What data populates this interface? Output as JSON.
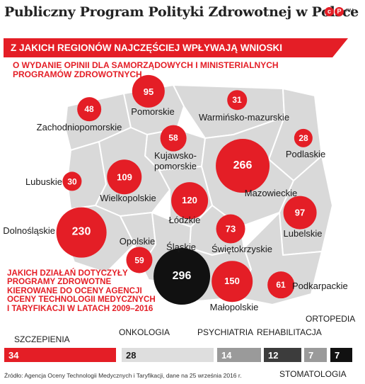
{
  "title": "Publiczny Program Polityki Zdrowotnej w Polsce",
  "logo": {
    "letters": [
      "c",
      "P"
    ],
    "tag": "RM"
  },
  "banner": "Z JAKICH REGIONÓW NAJCZĘŚCIEJ WPŁYWAJĄ WNIOSKI",
  "subtitle": "O WYDANIE OPINII DLA SAMORZĄDOWYCH I MINISTERIALNYCH PROGRAMÓW ZDROWOTNYCH",
  "colors": {
    "red": "#e41e26",
    "map": "#d9d9d9",
    "black": "#111111",
    "gray_light": "#dedede",
    "gray_mid": "#9a9a9a",
    "gray_dark": "#3c3c3c"
  },
  "regions": [
    {
      "name": "Zachodniopomorskie",
      "value": 48
    },
    {
      "name": "Pomorskie",
      "value": 95
    },
    {
      "name": "Warmińsko-mazurskie",
      "value": 31
    },
    {
      "name": "Podlaskie",
      "value": 28
    },
    {
      "name": "Kujawsko-pomorskie",
      "value": 58
    },
    {
      "name": "Mazowieckie",
      "value": 266
    },
    {
      "name": "Lubuskie",
      "value": 30
    },
    {
      "name": "Wielkopolskie",
      "value": 109
    },
    {
      "name": "Łódzkie",
      "value": 120
    },
    {
      "name": "Lubelskie",
      "value": 97
    },
    {
      "name": "Dolnośląskie",
      "value": 230
    },
    {
      "name": "Opolskie",
      "value": 59
    },
    {
      "name": "Śląskie",
      "value": 296
    },
    {
      "name": "Świętokrzyskie",
      "value": 73
    },
    {
      "name": "Małopolskie",
      "value": 150
    },
    {
      "name": "Podkarpackie",
      "value": 61
    }
  ],
  "actions_title": "JAKICH DZIAŁAŃ DOTYCZYŁY PROGRAMY ZDROWOTNE KIEROWANE DO OCENY AGENCJI OCENY TECHNOLOGII MEDYCZNYCH I TARYFIKACJI W LATACH 2009–2016",
  "programs": [
    {
      "name": "SZCZEPIENIA",
      "value": 34
    },
    {
      "name": "ONKOLOGIA",
      "value": 28
    },
    {
      "name": "PSYCHIATRIA",
      "value": 14
    },
    {
      "name": "REHABILITACJA",
      "value": 12
    },
    {
      "name": "STOMATOLOGIA",
      "value": 7
    },
    {
      "name": "ORTOPEDIA",
      "value": 7
    }
  ],
  "source": "Źródło: Agencja Oceny Technologii Medycznych i Taryfikacji, dane na 25 września 2016 r."
}
